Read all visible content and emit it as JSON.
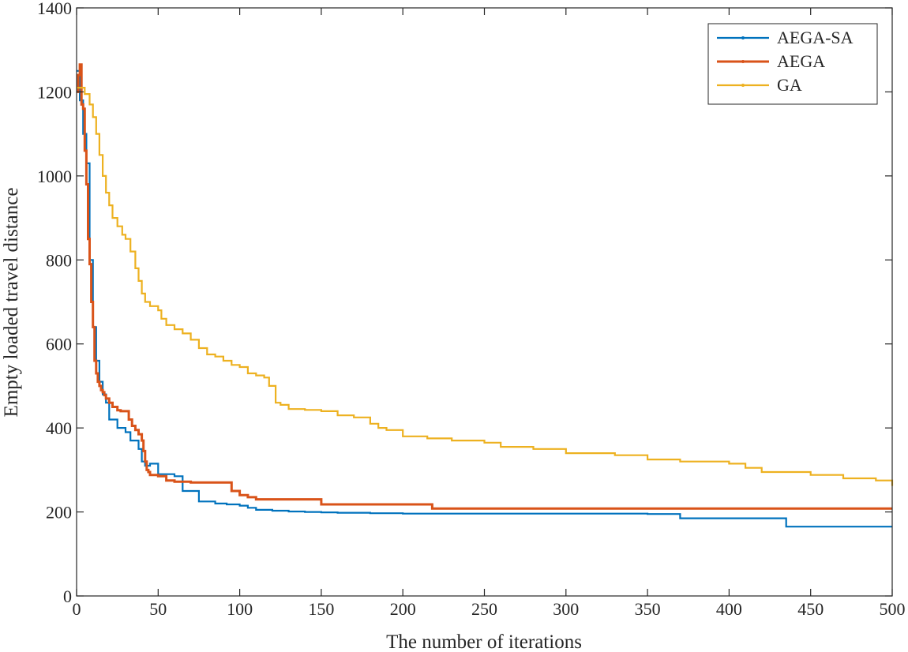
{
  "chart_data": {
    "type": "line",
    "title": "",
    "xlabel": "The number of iterations",
    "ylabel": "Empty loaded travel distance",
    "xlim": [
      0,
      500
    ],
    "ylim": [
      0,
      1400
    ],
    "xticks": [
      0,
      50,
      100,
      150,
      200,
      250,
      300,
      350,
      400,
      450,
      500
    ],
    "yticks": [
      0,
      200,
      400,
      600,
      800,
      1000,
      1200,
      1400
    ],
    "grid": false,
    "legend_position": "top-right",
    "series": [
      {
        "name": "AEGA-SA",
        "color": "#0072BD",
        "step": true,
        "x": [
          0,
          2,
          4,
          6,
          8,
          10,
          12,
          14,
          16,
          18,
          20,
          25,
          30,
          33,
          38,
          40,
          42,
          45,
          50,
          55,
          60,
          65,
          75,
          85,
          92,
          100,
          105,
          110,
          120,
          130,
          140,
          150,
          160,
          180,
          200,
          250,
          300,
          350,
          370,
          400,
          435,
          500
        ],
        "y": [
          1250,
          1180,
          1100,
          1030,
          800,
          640,
          560,
          510,
          480,
          460,
          420,
          400,
          390,
          370,
          350,
          320,
          310,
          315,
          290,
          290,
          285,
          250,
          225,
          220,
          218,
          215,
          210,
          205,
          203,
          201,
          200,
          199,
          198,
          197,
          196,
          196,
          196,
          195,
          185,
          185,
          165,
          165
        ]
      },
      {
        "name": "AEGA",
        "color": "#D95319",
        "step": true,
        "x": [
          0,
          1,
          2,
          3,
          4,
          5,
          6,
          7,
          8,
          9,
          10,
          11,
          12,
          13,
          14,
          15,
          16,
          17,
          18,
          20,
          22,
          25,
          27,
          30,
          32,
          34,
          36,
          38,
          40,
          41,
          42,
          43,
          44,
          45,
          50,
          55,
          60,
          70,
          80,
          90,
          93,
          95,
          100,
          105,
          110,
          120,
          130,
          140,
          150,
          160,
          180,
          200,
          218,
          250,
          300,
          350,
          400,
          450,
          500
        ],
        "y": [
          1200,
          1240,
          1265,
          1170,
          1160,
          1060,
          980,
          850,
          790,
          700,
          640,
          560,
          530,
          510,
          500,
          490,
          485,
          478,
          470,
          460,
          450,
          442,
          440,
          440,
          420,
          405,
          395,
          385,
          370,
          345,
          320,
          300,
          295,
          288,
          285,
          275,
          272,
          270,
          270,
          270,
          270,
          250,
          240,
          235,
          230,
          230,
          230,
          230,
          218,
          218,
          218,
          218,
          208,
          208,
          208,
          208,
          208,
          208,
          208
        ]
      },
      {
        "name": "GA",
        "color": "#EDB120",
        "step": true,
        "x": [
          0,
          5,
          8,
          10,
          12,
          14,
          16,
          18,
          20,
          22,
          25,
          28,
          30,
          33,
          36,
          38,
          40,
          42,
          45,
          50,
          52,
          55,
          60,
          65,
          70,
          75,
          80,
          85,
          90,
          95,
          100,
          105,
          110,
          115,
          118,
          122,
          125,
          130,
          140,
          150,
          160,
          170,
          180,
          185,
          190,
          200,
          215,
          230,
          250,
          260,
          280,
          300,
          330,
          350,
          370,
          400,
          410,
          420,
          450,
          470,
          490,
          500
        ],
        "y": [
          1210,
          1195,
          1170,
          1140,
          1100,
          1050,
          1000,
          960,
          930,
          900,
          880,
          860,
          850,
          820,
          780,
          750,
          720,
          700,
          690,
          680,
          660,
          645,
          635,
          625,
          610,
          590,
          575,
          570,
          560,
          550,
          545,
          530,
          525,
          520,
          500,
          460,
          455,
          445,
          443,
          440,
          430,
          425,
          410,
          400,
          395,
          380,
          375,
          370,
          365,
          355,
          350,
          340,
          335,
          325,
          320,
          315,
          305,
          295,
          288,
          280,
          275,
          262
        ]
      }
    ]
  }
}
